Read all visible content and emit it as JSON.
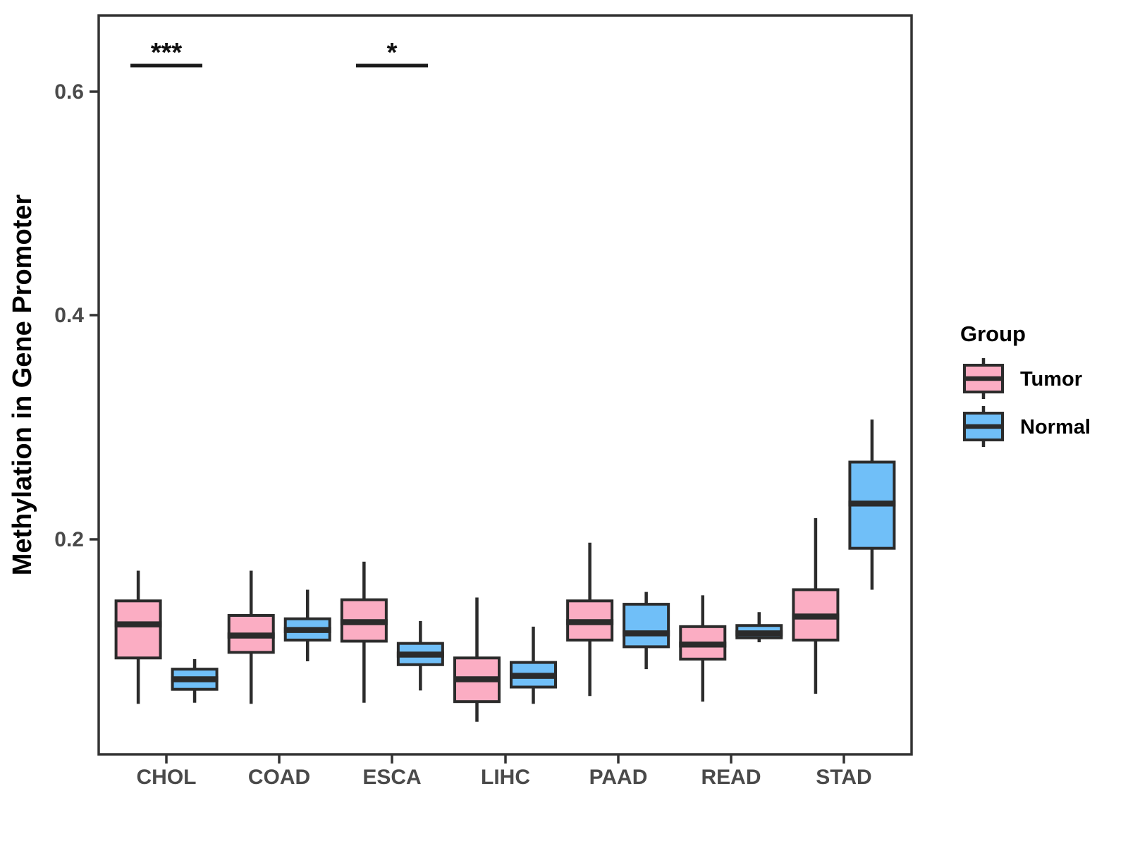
{
  "chart_data": {
    "type": "boxplot",
    "title": "",
    "xlabel": "",
    "ylabel": "Methylation in Gene Promoter",
    "categories": [
      "CHOL",
      "COAD",
      "ESCA",
      "LIHC",
      "PAAD",
      "READ",
      "STAD"
    ],
    "legend": {
      "title": "Group",
      "position": "right"
    },
    "groups": [
      {
        "name": "Tumor",
        "color": "#FBADC3"
      },
      {
        "name": "Normal",
        "color": "#70BFF8"
      }
    ],
    "y_axis": {
      "ticks": [
        0.2,
        0.4,
        0.6
      ],
      "tick_labels": [
        "0.2",
        "0.4",
        "0.6"
      ],
      "range": [
        0.005,
        0.67
      ],
      "grid": false
    },
    "box_outline_color": "#2b2b2b",
    "series": [
      {
        "name": "Tumor",
        "color": "#FBADC3",
        "boxes": [
          {
            "category": "CHOL",
            "min": 0.053,
            "q1": 0.094,
            "median": 0.124,
            "q3": 0.145,
            "max": 0.172
          },
          {
            "category": "COAD",
            "min": 0.053,
            "q1": 0.099,
            "median": 0.114,
            "q3": 0.132,
            "max": 0.172
          },
          {
            "category": "ESCA",
            "min": 0.054,
            "q1": 0.109,
            "median": 0.126,
            "q3": 0.146,
            "max": 0.18
          },
          {
            "category": "LIHC",
            "min": 0.037,
            "q1": 0.055,
            "median": 0.075,
            "q3": 0.094,
            "max": 0.148
          },
          {
            "category": "PAAD",
            "min": 0.06,
            "q1": 0.11,
            "median": 0.126,
            "q3": 0.145,
            "max": 0.197
          },
          {
            "category": "READ",
            "min": 0.055,
            "q1": 0.093,
            "median": 0.106,
            "q3": 0.122,
            "max": 0.15
          },
          {
            "category": "STAD",
            "min": 0.062,
            "q1": 0.11,
            "median": 0.131,
            "q3": 0.155,
            "max": 0.219
          }
        ]
      },
      {
        "name": "Normal",
        "color": "#70BFF8",
        "boxes": [
          {
            "category": "CHOL",
            "min": 0.054,
            "q1": 0.066,
            "median": 0.075,
            "q3": 0.084,
            "max": 0.093
          },
          {
            "category": "COAD",
            "min": 0.091,
            "q1": 0.11,
            "median": 0.119,
            "q3": 0.129,
            "max": 0.155
          },
          {
            "category": "ESCA",
            "min": 0.065,
            "q1": 0.088,
            "median": 0.097,
            "q3": 0.107,
            "max": 0.127
          },
          {
            "category": "LIHC",
            "min": 0.053,
            "q1": 0.068,
            "median": 0.078,
            "q3": 0.09,
            "max": 0.122
          },
          {
            "category": "PAAD",
            "min": 0.084,
            "q1": 0.104,
            "median": 0.116,
            "q3": 0.142,
            "max": 0.153
          },
          {
            "category": "READ",
            "min": 0.108,
            "q1": 0.112,
            "median": 0.116,
            "q3": 0.123,
            "max": 0.135
          },
          {
            "category": "STAD",
            "min": 0.155,
            "q1": 0.192,
            "median": 0.232,
            "q3": 0.269,
            "max": 0.307
          }
        ]
      }
    ],
    "annotations": [
      {
        "category": "CHOL",
        "label": "***",
        "bar_y": 0.623
      },
      {
        "category": "ESCA",
        "label": "*",
        "bar_y": 0.623
      }
    ]
  }
}
